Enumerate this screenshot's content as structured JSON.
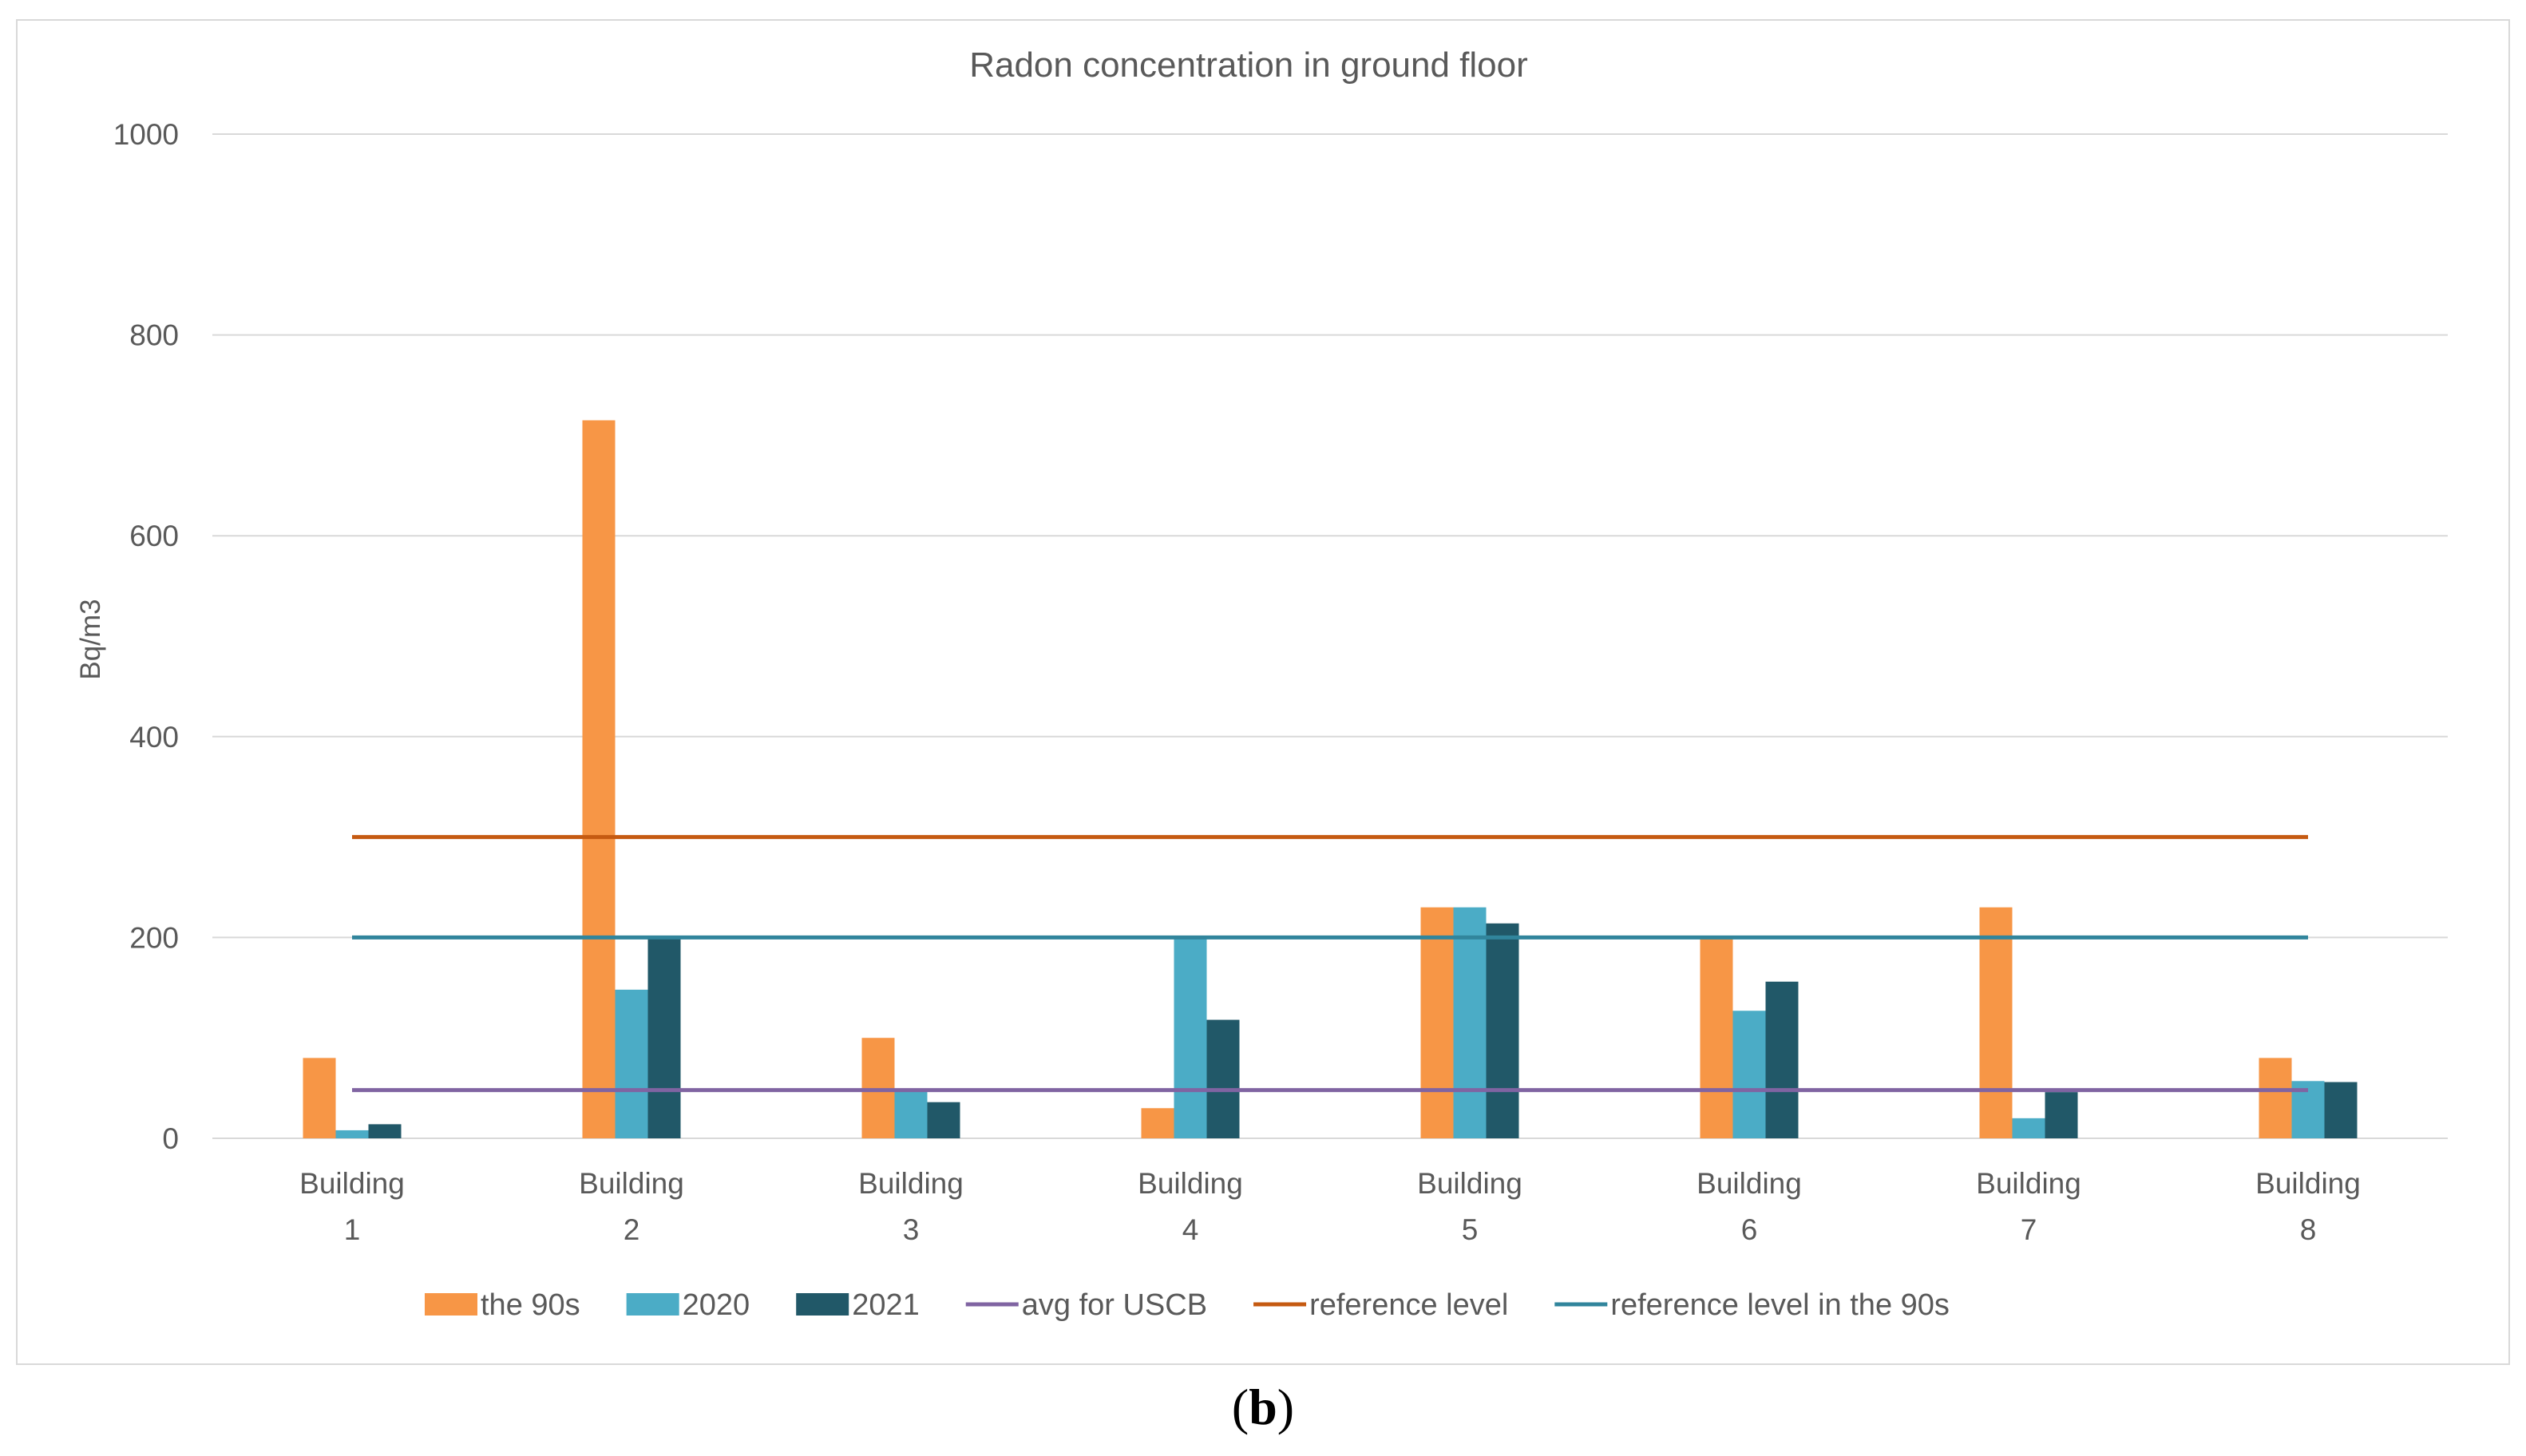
{
  "caption": {
    "open": "(",
    "letter": "b",
    "close": ")"
  },
  "chart_data": {
    "type": "bar",
    "title": "Radon concentration in ground floor",
    "xlabel": "",
    "ylabel": "Bq/m3",
    "ylim": [
      0,
      1000
    ],
    "yticks": [
      0,
      200,
      400,
      600,
      800,
      1000
    ],
    "grid": true,
    "legend_position": "bottom",
    "categories": [
      [
        "Building",
        "1"
      ],
      [
        "Building",
        "2"
      ],
      [
        "Building",
        "3"
      ],
      [
        "Building",
        "4"
      ],
      [
        "Building",
        "5"
      ],
      [
        "Building",
        "6"
      ],
      [
        "Building",
        "7"
      ],
      [
        "Building",
        "8"
      ]
    ],
    "series": [
      {
        "name": "the 90s",
        "type": "bar",
        "color": "#f79646",
        "values": [
          80,
          715,
          100,
          30,
          230,
          200,
          230,
          80
        ]
      },
      {
        "name": "2020",
        "type": "bar",
        "color": "#4bacc6",
        "values": [
          8,
          148,
          48,
          200,
          230,
          127,
          20,
          57
        ]
      },
      {
        "name": "2021",
        "type": "bar",
        "color": "#215868",
        "values": [
          14,
          200,
          36,
          118,
          214,
          156,
          46,
          56
        ]
      },
      {
        "name": "avg for USCB",
        "type": "line",
        "color": "#8064a2",
        "values": [
          48,
          48,
          48,
          48,
          48,
          48,
          48,
          48
        ]
      },
      {
        "name": "reference level",
        "type": "line",
        "color": "#c55a11",
        "values": [
          300,
          300,
          300,
          300,
          300,
          300,
          300,
          300
        ]
      },
      {
        "name": "reference level in the 90s",
        "type": "line",
        "color": "#31859c",
        "values": [
          200,
          200,
          200,
          200,
          200,
          200,
          200,
          200
        ]
      }
    ]
  }
}
